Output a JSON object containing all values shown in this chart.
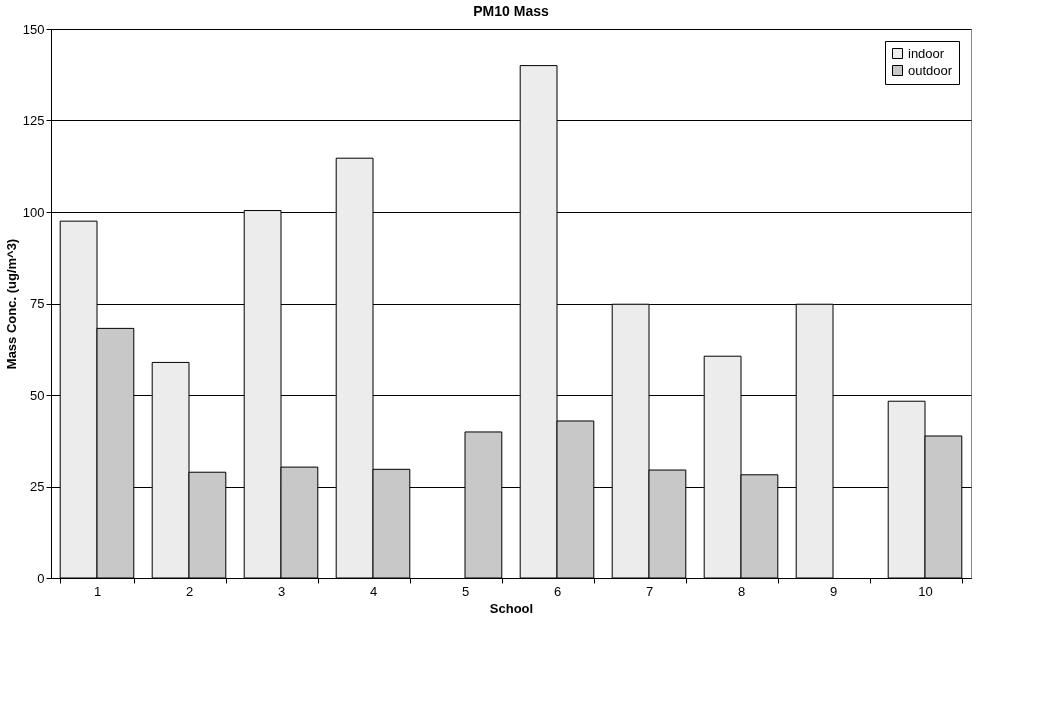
{
  "chart_data": {
    "type": "bar",
    "title": "PM10 Mass",
    "xlabel": "School",
    "ylabel": "Mass Conc. (ug/m^3)",
    "categories": [
      "1",
      "2",
      "3",
      "4",
      "5",
      "6",
      "7",
      "8",
      "9",
      "10"
    ],
    "series": [
      {
        "name": "indoor",
        "color": "#ececec",
        "values": [
          97.5,
          58.9,
          100.4,
          114.7,
          null,
          140.0,
          74.8,
          60.6,
          74.8,
          48.3
        ]
      },
      {
        "name": "outdoor",
        "color": "#c8c8c8",
        "values": [
          68.2,
          28.9,
          30.3,
          29.7,
          39.9,
          42.9,
          29.5,
          28.2,
          null,
          38.8
        ]
      }
    ],
    "ylim": [
      0,
      150
    ],
    "yticks": [
      0,
      25,
      50,
      75,
      100,
      125,
      150
    ],
    "grid": "y",
    "legend": "top right"
  }
}
